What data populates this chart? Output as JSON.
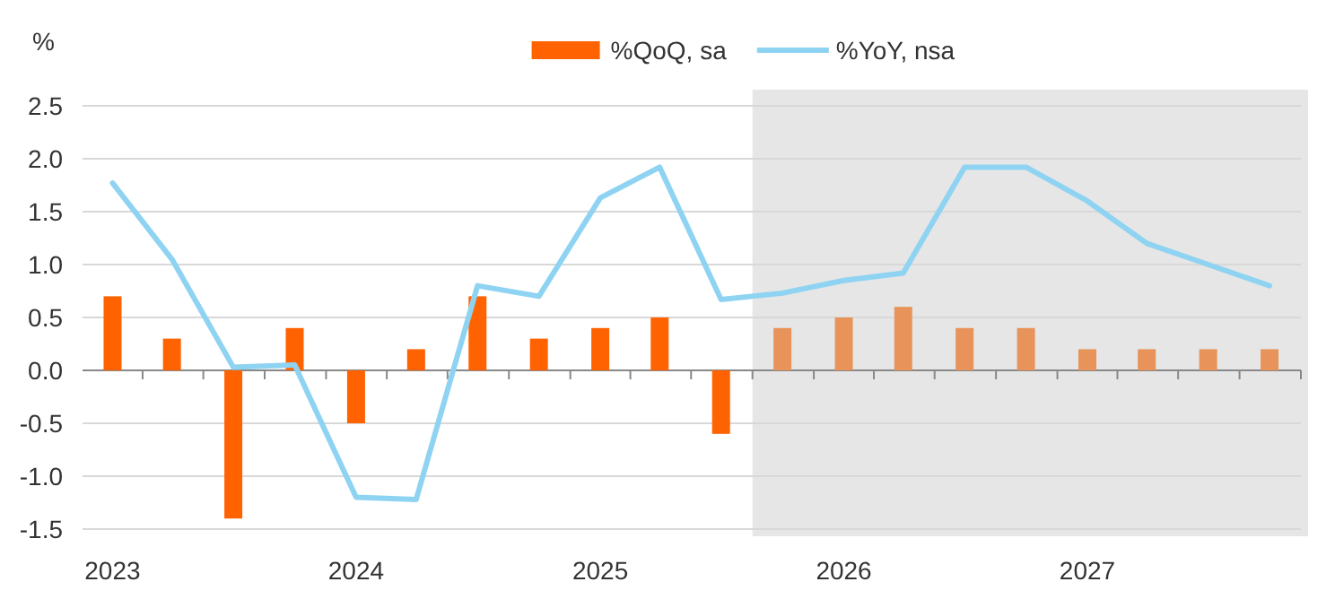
{
  "chart_data": {
    "type": "bar",
    "ylabel": "%",
    "x": [
      "2023-02-15",
      "2023-05-15",
      "2023-08-15",
      "2023-11-15",
      "2024-02-15",
      "2024-05-15",
      "2024-08-15",
      "2024-11-15",
      "2025-02-15",
      "2025-05-15",
      "2025-08-15",
      "2025-11-15",
      "2026-02-15",
      "2026-05-15",
      "2026-08-15",
      "2026-11-15",
      "2027-02-15",
      "2027-05-15",
      "2027-08-15",
      "2027-11-15"
    ],
    "series": [
      {
        "name": "%QoQ, sa",
        "color": "#ff6200",
        "colors": [
          "#ff6200",
          "#ff6200",
          "#ff6200",
          "#ff6200",
          "#ff6200",
          "#ff6200",
          "#ff6200",
          "#ff6200",
          "#ff6200",
          "#ff6200",
          "#ff6200",
          "#e8935a",
          "#e8935a",
          "#e8935a",
          "#e8935a",
          "#e8935a",
          "#e8935a",
          "#e8935a",
          "#e8935a",
          "#e8935a"
        ],
        "values": [
          0.7,
          0.3,
          -1.4,
          0.4,
          -0.5,
          0.2,
          0.7,
          0.3,
          0.4,
          0.5,
          -0.6,
          0.4,
          0.5,
          0.6,
          0.4,
          0.4,
          0.2,
          0.2,
          0.2,
          0.2
        ]
      },
      {
        "name": "%YoY, nsa",
        "type": "line",
        "color": "#8fd3f2",
        "values": [
          1.77,
          1.05,
          0.03,
          0.05,
          -1.2,
          -1.22,
          0.8,
          0.7,
          1.63,
          1.92,
          0.67,
          0.73,
          0.85,
          0.92,
          1.92,
          1.92,
          1.6,
          1.2,
          1.0,
          0.8
        ]
      }
    ],
    "xlim": [
      "2023-01-01",
      "2028-01-01"
    ],
    "xticks": [
      {
        "value": "2023-02-15",
        "label": "2023"
      },
      {
        "value": "2024-02-15",
        "label": "2024"
      },
      {
        "value": "2025-02-15",
        "label": "2025"
      },
      {
        "value": "2026-02-15",
        "label": "2026"
      },
      {
        "value": "2027-02-15",
        "label": "2027"
      },
      {
        "value": "2023-04-01",
        "label": null
      },
      {
        "value": "2023-07-01",
        "label": null
      },
      {
        "value": "2023-10-01",
        "label": null
      },
      {
        "value": "2024-01-01",
        "label": null
      },
      {
        "value": "2024-04-01",
        "label": null
      },
      {
        "value": "2024-07-01",
        "label": null
      },
      {
        "value": "2024-10-01",
        "label": null
      },
      {
        "value": "2025-01-01",
        "label": null
      },
      {
        "value": "2025-04-01",
        "label": null
      },
      {
        "value": "2025-07-01",
        "label": null
      },
      {
        "value": "2025-10-01",
        "label": null
      },
      {
        "value": "2026-01-01",
        "label": null
      },
      {
        "value": "2026-04-01",
        "label": null
      },
      {
        "value": "2026-07-01",
        "label": null
      },
      {
        "value": "2026-10-01",
        "label": null
      },
      {
        "value": "2027-01-01",
        "label": null
      },
      {
        "value": "2027-04-01",
        "label": null
      },
      {
        "value": "2027-07-01",
        "label": null
      },
      {
        "value": "2027-10-01",
        "label": null
      },
      {
        "value": "2028-01-01",
        "label": null
      }
    ],
    "ylim": [
      -1.5,
      2.5
    ],
    "yticks": [
      {
        "value": 2.5,
        "label": "2.5"
      },
      {
        "value": 2,
        "label": "2.0"
      },
      {
        "value": 1.5,
        "label": "1.5"
      },
      {
        "value": 1,
        "label": "1.0"
      },
      {
        "value": 0.5,
        "label": "0.5"
      },
      {
        "value": 0,
        "label": "0.0"
      },
      {
        "value": -0.5,
        "label": "-0.5"
      },
      {
        "value": -1,
        "label": "-1.0"
      },
      {
        "value": -1.5,
        "label": "-1.5"
      }
    ],
    "bands": [
      {
        "axis": "x",
        "from": "2025-10-01",
        "to": "2028-01-01",
        "color": "#e6e6e6"
      }
    ],
    "grid": "y",
    "legend": "top"
  }
}
